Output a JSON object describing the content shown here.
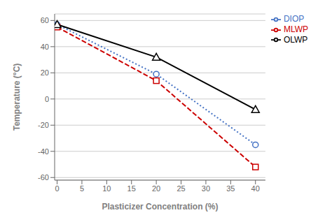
{
  "chart_data": {
    "type": "line",
    "xlabel": "Plasticizer Concentration (%)",
    "ylabel": "Temperature (°C)",
    "x": [
      0,
      20,
      40
    ],
    "series": [
      {
        "name": "DIOP",
        "color": "#4472c4",
        "values": [
          57,
          19,
          -35
        ],
        "marker": "circle",
        "line_style": "dotted"
      },
      {
        "name": "MLWP",
        "color": "#cc0000",
        "values": [
          55,
          14,
          -52
        ],
        "marker": "square",
        "line_style": "dashed"
      },
      {
        "name": "OLWP",
        "color": "#000000",
        "values": [
          57,
          32,
          -8
        ],
        "marker": "triangle",
        "line_style": "solid"
      }
    ],
    "xlim": [
      -0.5,
      42
    ],
    "ylim": [
      -62,
      65
    ],
    "xticks": [
      0,
      5,
      10,
      15,
      20,
      25,
      30,
      35,
      40
    ],
    "yticks": [
      -60,
      -40,
      -20,
      0,
      20,
      40,
      60
    ],
    "grid": "y",
    "legend": "upper right"
  }
}
